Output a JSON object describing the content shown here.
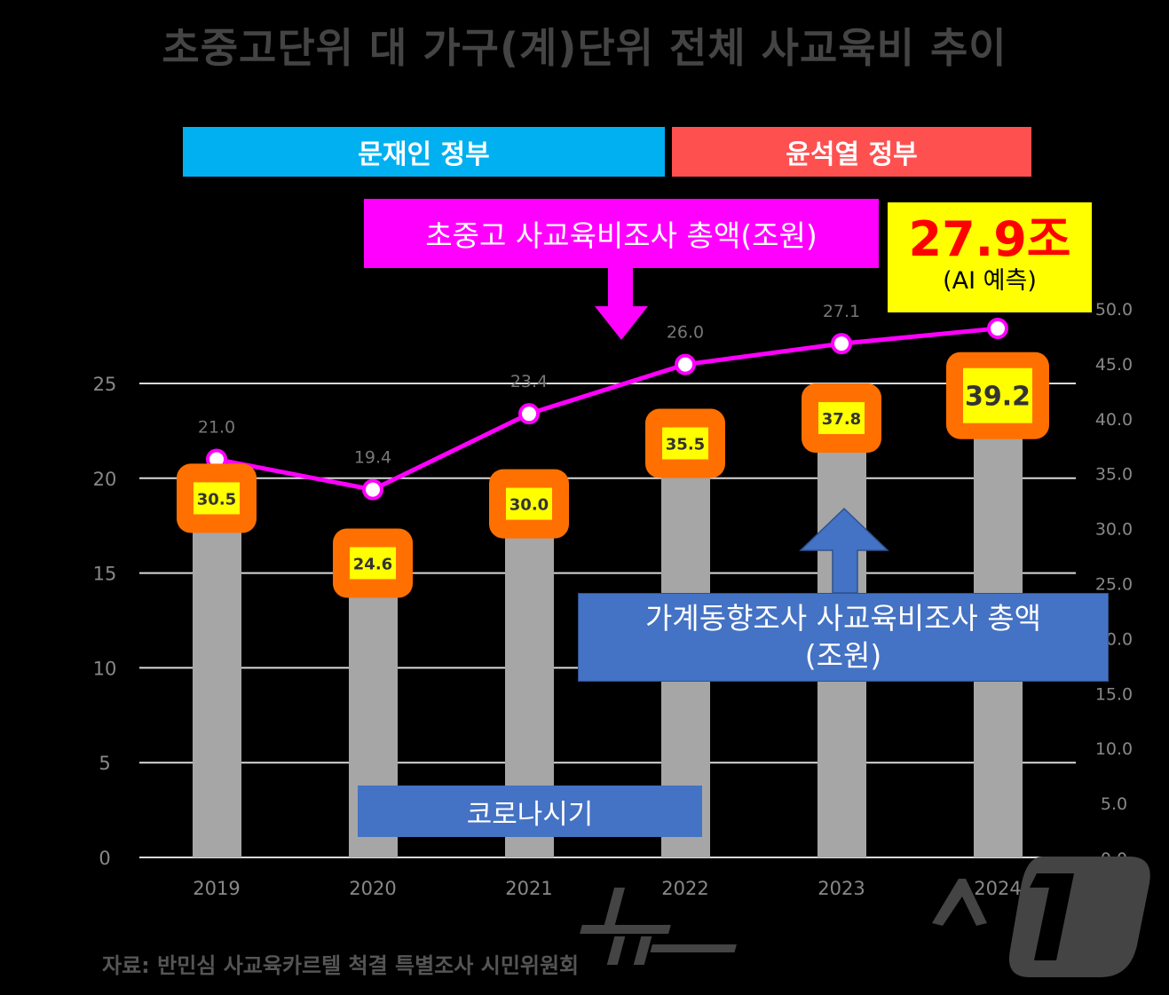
{
  "title": "초중고단위 대 가구(계)단위 전체 사교육비 추이",
  "banners": {
    "moon": "문재인 정부",
    "yoon": "윤석열 정부"
  },
  "annotations": {
    "survey_label": "초중고 사교육비조사 총액(조원)",
    "prediction_value": "27.9조",
    "prediction_note": "(AI 예측)",
    "household_label_line1": "가계동향조사 사교육비조사 총액",
    "household_label_line2": "(조원)",
    "covid_label": "코로나시기"
  },
  "source": "자료: 반민심 사교육카르텔 척결 특별조사 시민위원회",
  "logo_text": "뉴스1",
  "colors": {
    "bar": "#a6a6a6",
    "line": "#ff00ff",
    "label_outer": "#ff7000",
    "label_inner": "#ffff00",
    "moon": "#00b0f0",
    "yoon": "#ff5050",
    "box_blue": "#4472c4"
  },
  "chart_data": {
    "type": "bar+line",
    "categories": [
      "2019",
      "2020",
      "2021",
      "2022",
      "2023",
      "2024"
    ],
    "series": [
      {
        "type": "bar",
        "axis": "right",
        "values": [
          30.5,
          24.6,
          30.0,
          35.5,
          37.8,
          39.2
        ],
        "labels": [
          "30.5",
          "24.6",
          "30.0",
          "35.5",
          "37.8",
          "39.2"
        ]
      },
      {
        "type": "line",
        "axis": "left",
        "values": [
          21.0,
          19.4,
          23.4,
          26.0,
          27.1,
          27.9
        ],
        "labels": [
          "21.0",
          "19.4",
          "23.4",
          "26.0",
          "27.1",
          ""
        ]
      }
    ],
    "left_axis": {
      "range": [
        0,
        25
      ],
      "ticks": [
        "0",
        "5",
        "10",
        "15",
        "20",
        "25"
      ]
    },
    "right_axis": {
      "range": [
        0,
        50
      ],
      "ticks": [
        "0.0",
        "5.0",
        "10.0",
        "15.0",
        "20.0",
        "25.0",
        "30.0",
        "35.0",
        "40.0",
        "45.0",
        "50.0"
      ]
    },
    "grid": true
  }
}
